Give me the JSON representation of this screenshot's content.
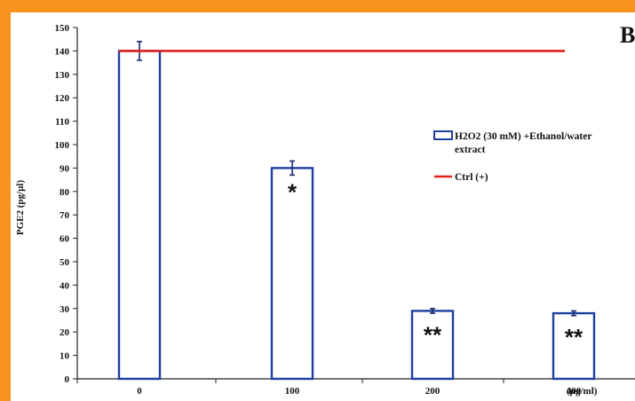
{
  "panel_label": "B",
  "chart_data": {
    "type": "bar",
    "categories": [
      "0",
      "100",
      "200",
      "400"
    ],
    "x_unit": "(µg/ml)",
    "ylabel": "PGE2 (pg/µl)",
    "ylim": [
      0,
      150
    ],
    "y_ticks": [
      0,
      10,
      20,
      30,
      40,
      50,
      60,
      70,
      80,
      90,
      100,
      110,
      120,
      130,
      140,
      150
    ],
    "series": [
      {
        "name": "H2O2 (30 mM) +Ethanol/water extract",
        "values": [
          140,
          90,
          29,
          28
        ],
        "errors": [
          4,
          3,
          1,
          1
        ],
        "significance": [
          "",
          "*",
          "**",
          "**"
        ],
        "color": "#1f3fa0",
        "style": "outlined-bar"
      },
      {
        "name": "Ctrl (+)",
        "value": 140,
        "color": "#e32119",
        "style": "horizontal-line"
      }
    ],
    "legend": {
      "placement": "right",
      "bar_label_lines": [
        "H2O2 (30 mM) +Ethanol/water",
        "extract"
      ],
      "line_label": "Ctrl (+)"
    }
  }
}
